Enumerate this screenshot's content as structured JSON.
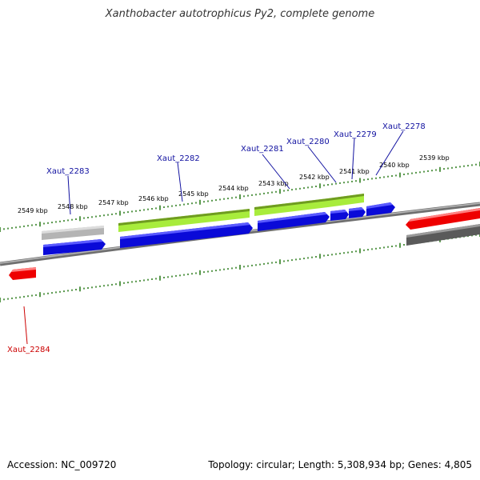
{
  "title": "Xanthobacter autotrophicus Py2, complete genome",
  "footer": {
    "accession": "Accession: NC_009720",
    "topology": "Topology: circular; Length: 5,308,934 bp; Genes: 4,805"
  },
  "colors": {
    "backbone": "#7a7a7a",
    "tick": "#2e7d1e",
    "cds_forward": "#0a0ad8",
    "cds_reverse": "#ee0000",
    "gene_fwd": "#a8ec3c",
    "gene_pseudo": "#b4b4b4",
    "gene_rev": "#5a5a5a",
    "label_fwd": "#1010a0",
    "label_rev": "#cc0000"
  },
  "ticks": [
    {
      "label": "2549 kbp"
    },
    {
      "label": "2548 kbp"
    },
    {
      "label": "2547 kbp"
    },
    {
      "label": "2546 kbp"
    },
    {
      "label": "2545 kbp"
    },
    {
      "label": "2544 kbp"
    },
    {
      "label": "2543 kbp"
    },
    {
      "label": "2542 kbp"
    },
    {
      "label": "2541 kbp"
    },
    {
      "label": "2540 kbp"
    },
    {
      "label": "2539 kbp"
    }
  ],
  "genes": [
    {
      "name": "Xaut_2283",
      "strand": "forward"
    },
    {
      "name": "Xaut_2282",
      "strand": "forward"
    },
    {
      "name": "Xaut_2281",
      "strand": "forward"
    },
    {
      "name": "Xaut_2280",
      "strand": "forward"
    },
    {
      "name": "Xaut_2279",
      "strand": "forward"
    },
    {
      "name": "Xaut_2278",
      "strand": "forward"
    },
    {
      "name": "Xaut_2284",
      "strand": "reverse"
    }
  ]
}
